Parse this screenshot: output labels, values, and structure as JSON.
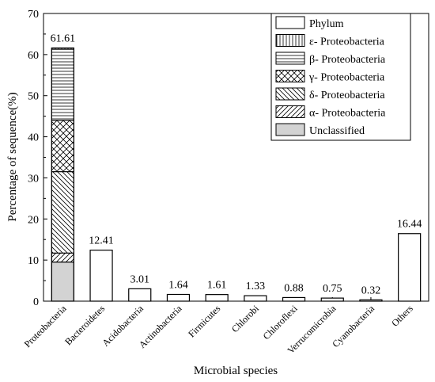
{
  "chart_data": {
    "type": "bar",
    "title": "",
    "xlabel": "Microbial species",
    "ylabel": "Percentage of sequence(%)",
    "ylim": [
      0,
      70
    ],
    "yticks": [
      "0",
      "10",
      "20",
      "30",
      "40",
      "50",
      "60",
      "70"
    ],
    "grid": false,
    "legend_position": "top-right",
    "categories": [
      "Proteobacteria",
      "Bacteroidetes",
      "Acidobacteria",
      "Actinobacteria",
      "Firmicutes",
      "Chlorobi",
      "Chloroflexi",
      "Verrucomicrobia",
      "Cyanobacteria",
      "Others"
    ],
    "values": [
      61.61,
      12.41,
      3.01,
      1.64,
      1.61,
      1.33,
      0.88,
      0.75,
      0.32,
      16.44
    ],
    "value_labels": [
      "61.61",
      "12.41",
      "3.01",
      "1.64",
      "1.61",
      "1.33",
      "0.88",
      "0.75",
      "0.32",
      "16.44"
    ],
    "legend": [
      {
        "label": "Phylum",
        "pattern": "none"
      },
      {
        "label": "ε- Proteobacteria",
        "pattern": "vertical"
      },
      {
        "label": "β- Proteobacteria",
        "pattern": "horizontal"
      },
      {
        "label": "γ- Proteobacteria",
        "pattern": "crosshatch"
      },
      {
        "label": "δ- Proteobacteria",
        "pattern": "backslash"
      },
      {
        "label": "α- Proteobacteria",
        "pattern": "slash"
      },
      {
        "label": "Unclassified",
        "pattern": "gray"
      }
    ],
    "proteobacteria_stack": [
      {
        "label": "Unclassified",
        "value": 9.5
      },
      {
        "label": "α- Proteobacteria",
        "value": 2.2
      },
      {
        "label": "δ- Proteobacteria",
        "value": 19.8
      },
      {
        "label": "γ- Proteobacteria",
        "value": 12.5
      },
      {
        "label": "β- Proteobacteria",
        "value": 17.3
      },
      {
        "label": "ε- Proteobacteria",
        "value": 0.31
      }
    ]
  }
}
